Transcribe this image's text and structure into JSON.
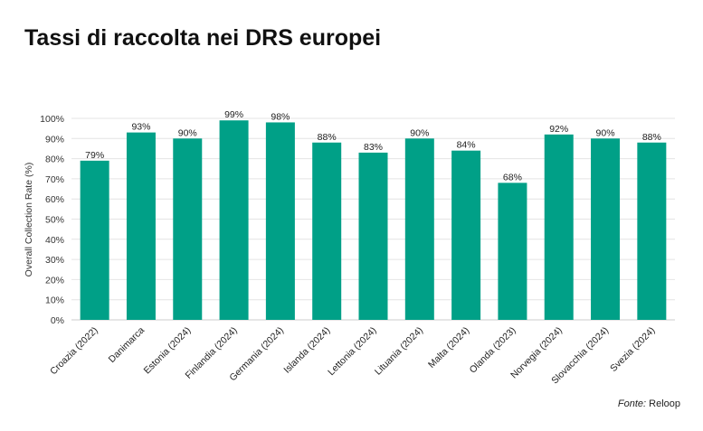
{
  "chart_data": {
    "type": "bar",
    "title": "Tassi di raccolta nei DRS europei",
    "xlabel": "",
    "ylabel": "Overall Collection Rate (%)",
    "ylim": [
      0,
      100
    ],
    "yticks": [
      "0%",
      "10%",
      "20%",
      "30%",
      "40%",
      "50%",
      "60%",
      "70%",
      "80%",
      "90%",
      "100%"
    ],
    "grid": true,
    "categories": [
      "Croazia (2022)",
      "Danimarca",
      "Estonia (2024)",
      "Finlandia (2024)",
      "Germania (2024)",
      "Islanda (2024)",
      "Lettonia (2024)",
      "Lituania (2024)",
      "Malta (2024)",
      "Olanda (2023)",
      "Norvegia (2024)",
      "Slovacchia (2024)",
      "Svezia (2024)"
    ],
    "values": [
      79,
      93,
      90,
      99,
      98,
      88,
      83,
      90,
      84,
      68,
      92,
      90,
      88
    ],
    "data_labels": [
      "79%",
      "93%",
      "90%",
      "99%",
      "98%",
      "88%",
      "83%",
      "90%",
      "84%",
      "68%",
      "92%",
      "90%",
      "88%"
    ],
    "bar_color": "#00a087",
    "source_prefix": "Fonte:",
    "source": "Reloop"
  }
}
